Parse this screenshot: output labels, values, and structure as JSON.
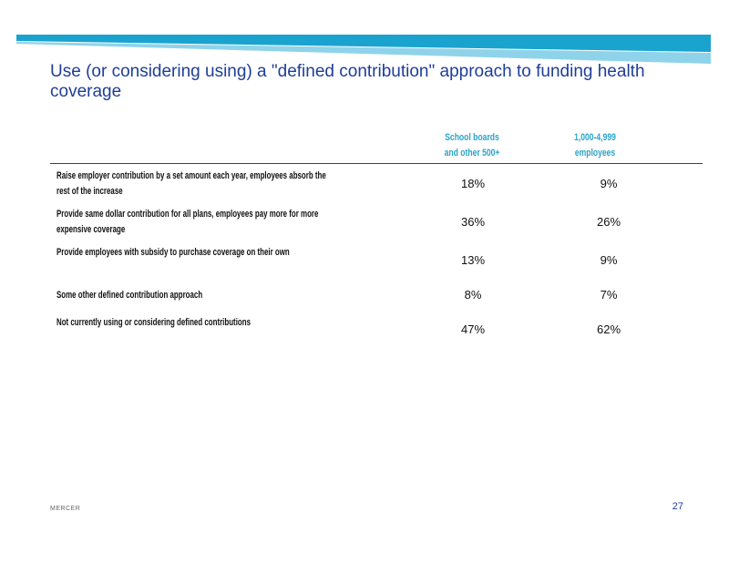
{
  "title": "Use (or considering using) a \"defined contribution\" approach to funding health coverage",
  "table": {
    "columns": [
      {
        "line1": "School boards",
        "line2": "and other 500+"
      },
      {
        "line1": "1,000-4,999",
        "line2": "employees"
      }
    ],
    "rows": [
      {
        "label": "Raise employer contribution by a set amount each year, employees absorb the rest of the increase",
        "values": [
          "18%",
          "9%"
        ]
      },
      {
        "label": "Provide same dollar contribution for all plans, employees pay more for more expensive coverage",
        "values": [
          "36%",
          "26%"
        ]
      },
      {
        "label": "Provide employees with subsidy to purchase coverage on their own",
        "values": [
          "13%",
          "9%"
        ]
      },
      {
        "label": "Some other defined contribution approach",
        "values": [
          "8%",
          "7%"
        ]
      },
      {
        "label": "Not currently using or considering defined contributions",
        "values": [
          "47%",
          "62%"
        ]
      }
    ]
  },
  "footer": {
    "brand": "MERCER",
    "page_number": "27"
  },
  "colors": {
    "title": "#1f3e96",
    "header_text": "#2aa3c8",
    "banner_top": "#1aa3cf",
    "banner_bottom": "#8fd3ea"
  }
}
